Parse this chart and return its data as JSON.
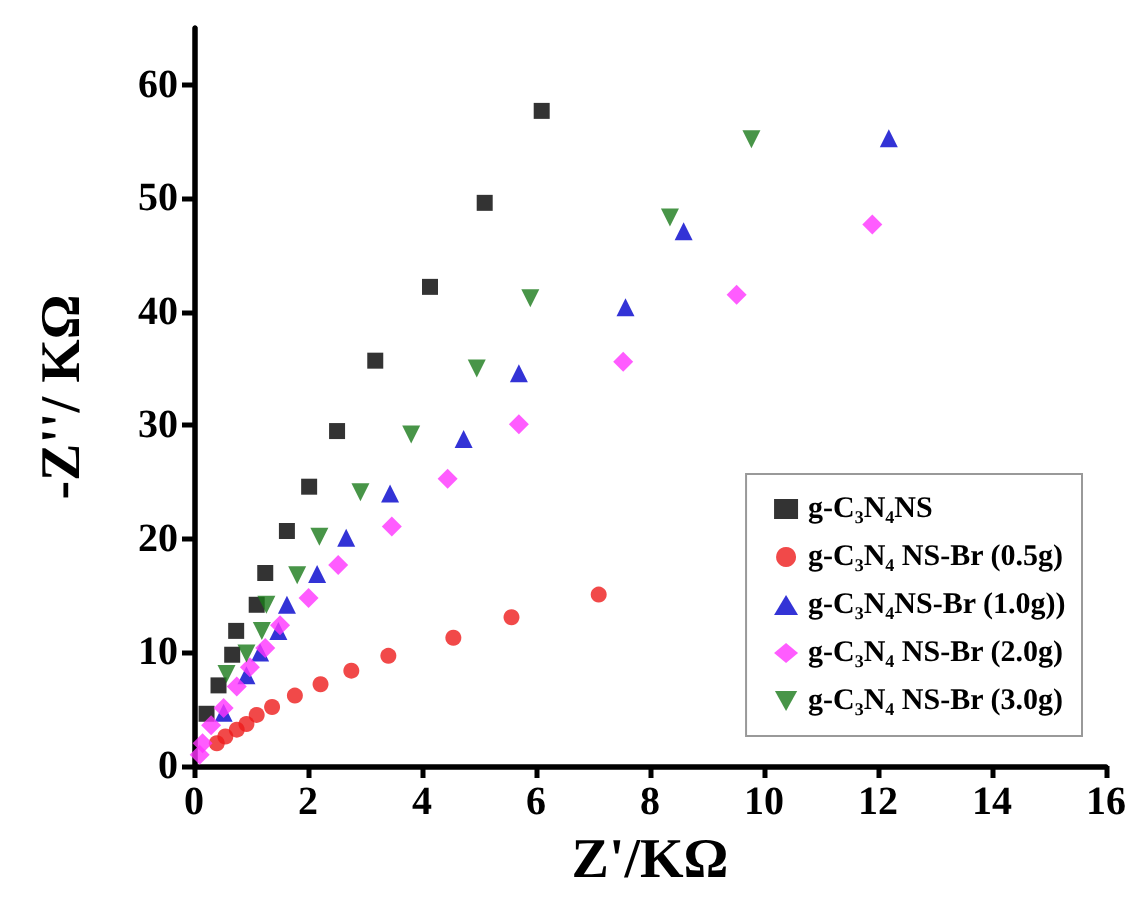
{
  "chart_data": {
    "type": "scatter",
    "xlabel": "Z'/KΩ",
    "ylabel": "-Z''/ KΩ",
    "xlim": [
      0,
      16
    ],
    "xticks": [
      0,
      2,
      4,
      6,
      8,
      10,
      12,
      14,
      16
    ],
    "ylim": [
      0,
      65
    ],
    "yticks": [
      0,
      10,
      20,
      30,
      40,
      50,
      60
    ],
    "grid": false,
    "legend": "bottom right",
    "series": [
      {
        "name": "g-C₃N₄NS",
        "color": "#000000",
        "marker": "square",
        "x": [
          0.22,
          0.43,
          0.67,
          0.74,
          1.1,
          1.25,
          1.63,
          2.02,
          2.51,
          3.18,
          4.14,
          5.1,
          6.1
        ],
        "values": [
          4.6,
          7.1,
          9.8,
          11.9,
          14.2,
          17.0,
          20.7,
          24.6,
          29.5,
          35.7,
          42.2,
          49.6,
          57.7
        ]
      },
      {
        "name": "g-C₃N₄ NS-Br (0.5g)",
        "color": "#ee1c1c",
        "marker": "circle",
        "x": [
          0.4,
          0.55,
          0.75,
          0.92,
          1.1,
          1.37,
          1.77,
          2.22,
          2.76,
          3.41,
          4.55,
          5.57,
          7.1
        ],
        "values": [
          2.0,
          2.6,
          3.2,
          3.7,
          4.5,
          5.2,
          6.2,
          7.2,
          8.4,
          9.7,
          11.3,
          13.1,
          15.1
        ]
      },
      {
        "name": "g-C₃N₄NS-Br (1.0g))",
        "color": "#0000cc",
        "marker": "triangle",
        "x": [
          0.52,
          0.92,
          1.16,
          1.48,
          1.63,
          2.16,
          2.67,
          3.44,
          4.73,
          5.7,
          7.57,
          8.59,
          12.19
        ],
        "values": [
          4.7,
          8.0,
          10.0,
          11.9,
          14.2,
          16.9,
          20.1,
          24.0,
          28.8,
          34.6,
          40.4,
          47.1,
          55.3
        ]
      },
      {
        "name": "g-C₃N₄ NS-Br (2.0g)",
        "color": "#ff33ff",
        "marker": "diamond",
        "x": [
          0.1,
          0.15,
          0.3,
          0.52,
          0.75,
          0.98,
          1.25,
          1.51,
          2.01,
          2.53,
          3.47,
          4.45,
          5.7,
          7.53,
          9.52,
          11.9
        ],
        "values": [
          1.0,
          2.0,
          3.6,
          5.1,
          7.0,
          8.7,
          10.4,
          12.4,
          14.8,
          17.7,
          21.1,
          25.3,
          30.1,
          35.6,
          41.5,
          47.7
        ]
      },
      {
        "name": "g-C₃N₄ NS-Br (3.0g)",
        "color": "#1a7a1a",
        "marker": "triangle-down",
        "x": [
          0.57,
          0.92,
          1.19,
          1.27,
          1.81,
          2.2,
          2.92,
          3.81,
          4.96,
          5.9,
          8.35,
          9.78
        ],
        "values": [
          8.1,
          9.9,
          11.9,
          14.2,
          16.8,
          20.2,
          24.1,
          29.2,
          35.0,
          41.2,
          48.3,
          55.2
        ]
      }
    ]
  }
}
